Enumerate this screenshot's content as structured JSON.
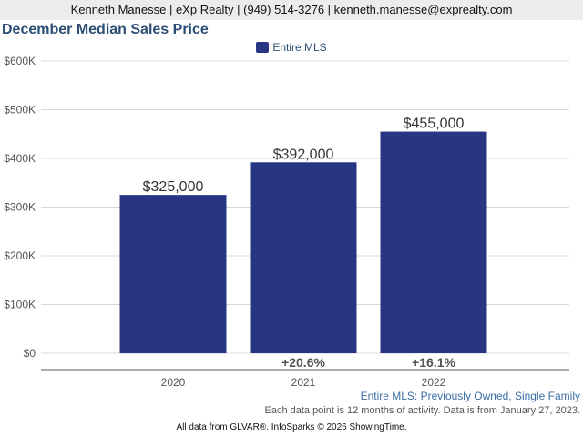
{
  "header": {
    "contact": "Kenneth Manesse | eXp Realty | (949) 514-3276 | kenneth.manesse@exprealty.com"
  },
  "chart_data": {
    "type": "bar",
    "title": "December Median Sales Price",
    "categories": [
      "2020",
      "2021",
      "2022"
    ],
    "series": [
      {
        "name": "Entire MLS",
        "values": [
          325000,
          392000,
          455000
        ],
        "color": "#283583"
      }
    ],
    "data_labels": [
      "$325,000",
      "$392,000",
      "$455,000"
    ],
    "change_labels": [
      "",
      "+20.6%",
      "+16.1%"
    ],
    "y_ticks": [
      0,
      100000,
      200000,
      300000,
      400000,
      500000,
      600000
    ],
    "y_tick_labels": [
      "$0",
      "$100K",
      "$200K",
      "$300K",
      "$400K",
      "$500K",
      "$600K"
    ],
    "ylim": [
      0,
      600000
    ],
    "grid": true,
    "legend_placement": "top-center"
  },
  "footer": {
    "subtitle": "Entire MLS: Previously Owned, Single Family",
    "note": "Each data point is 12 months of activity. Data is from January 27, 2023.",
    "credits": "All data from GLVAR®. InfoSparks © 2026 ShowingTime."
  }
}
